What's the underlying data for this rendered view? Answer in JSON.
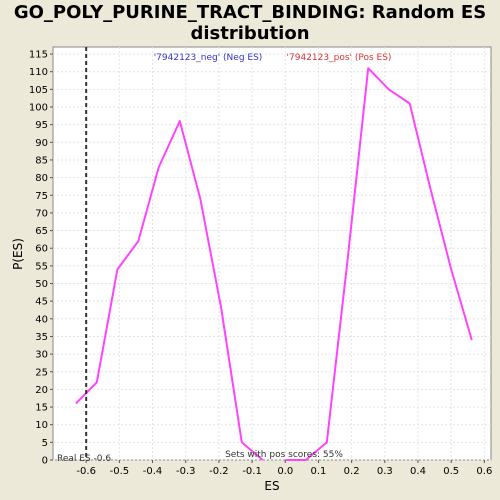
{
  "title_line1": "GO_POLY_PURINE_TRACT_BINDING: Random ES",
  "title_line2": "distribution",
  "chart_data": {
    "type": "line",
    "xlabel": "ES",
    "ylabel": "P(ES)",
    "xlim": [
      -0.7,
      0.62
    ],
    "ylim": [
      0,
      117
    ],
    "xticks": [
      -0.6,
      -0.5,
      -0.4,
      -0.3,
      -0.2,
      -0.1,
      0.0,
      0.1,
      0.2,
      0.3,
      0.4,
      0.5,
      0.6
    ],
    "xtick_labels": [
      "-0.6",
      "-0.5",
      "-0.4",
      "-0.3",
      "-0.2",
      "-0.1",
      "0.0",
      "0.1",
      "0.2",
      "0.3",
      "0.4",
      "0.5",
      "0.6"
    ],
    "yticks": [
      0,
      5,
      10,
      15,
      20,
      25,
      30,
      35,
      40,
      45,
      50,
      55,
      60,
      65,
      70,
      75,
      80,
      85,
      90,
      95,
      100,
      105,
      110,
      115
    ],
    "grid": true,
    "series": [
      {
        "name": "'7942123_neg' (Neg ES)",
        "color": "#FF44FF",
        "label_color": "#3333CC",
        "x": [
          -0.631,
          -0.568,
          -0.506,
          -0.443,
          -0.381,
          -0.318,
          -0.256,
          -0.193,
          -0.131,
          -0.068
        ],
        "y": [
          16,
          22,
          54,
          62,
          83,
          96,
          74,
          43,
          5,
          0
        ]
      },
      {
        "name": "'7942123_pos' (Pos ES)",
        "color": "#FF44FF",
        "label_color": "#DD3333",
        "x": [
          0.0,
          0.062,
          0.125,
          0.187,
          0.25,
          0.312,
          0.375,
          0.437,
          0.5,
          0.562
        ],
        "y": [
          0,
          0,
          5,
          56,
          111,
          105,
          101,
          77,
          54,
          34
        ]
      }
    ],
    "real_es": {
      "x": -0.6,
      "label": "Real ES -0.6"
    },
    "annotation": "Sets with pos scores: 55%"
  }
}
